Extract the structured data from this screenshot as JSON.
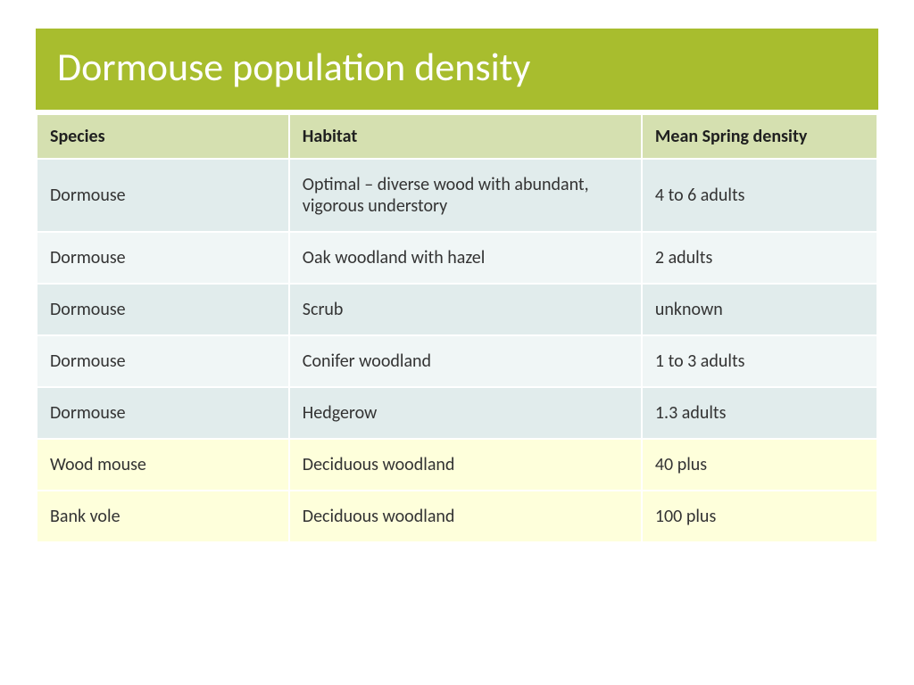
{
  "title": "Dormouse population density",
  "title_bg": "#a8bd2e",
  "title_color": "#ffffff",
  "table": {
    "header_bg": "#d5e0b0",
    "row_odd_bg": "#e1ecec",
    "row_even_bg": "#f0f6f6",
    "highlight_bg": "#feffdb",
    "columns": [
      {
        "label": "Species",
        "width": "30%"
      },
      {
        "label": "Habitat",
        "width": "42%"
      },
      {
        "label": "Mean Spring density",
        "width": "28%"
      }
    ],
    "rows": [
      {
        "species": "Dormouse",
        "habitat": "Optimal – diverse wood with abundant, vigorous understory",
        "density": "4 to 6 adults",
        "highlight": false
      },
      {
        "species": "Dormouse",
        "habitat": "Oak woodland with hazel",
        "density": "2 adults",
        "highlight": false
      },
      {
        "species": "Dormouse",
        "habitat": "Scrub",
        "density": "unknown",
        "highlight": false
      },
      {
        "species": "Dormouse",
        "habitat": "Conifer woodland",
        "density": "1 to 3 adults",
        "highlight": false
      },
      {
        "species": "Dormouse",
        "habitat": "Hedgerow",
        "density": "1.3 adults",
        "highlight": false
      },
      {
        "species": "Wood mouse",
        "habitat": "Deciduous woodland",
        "density": "40 plus",
        "highlight": true
      },
      {
        "species": "Bank vole",
        "habitat": "Deciduous woodland",
        "density": "100 plus",
        "highlight": true
      }
    ]
  }
}
